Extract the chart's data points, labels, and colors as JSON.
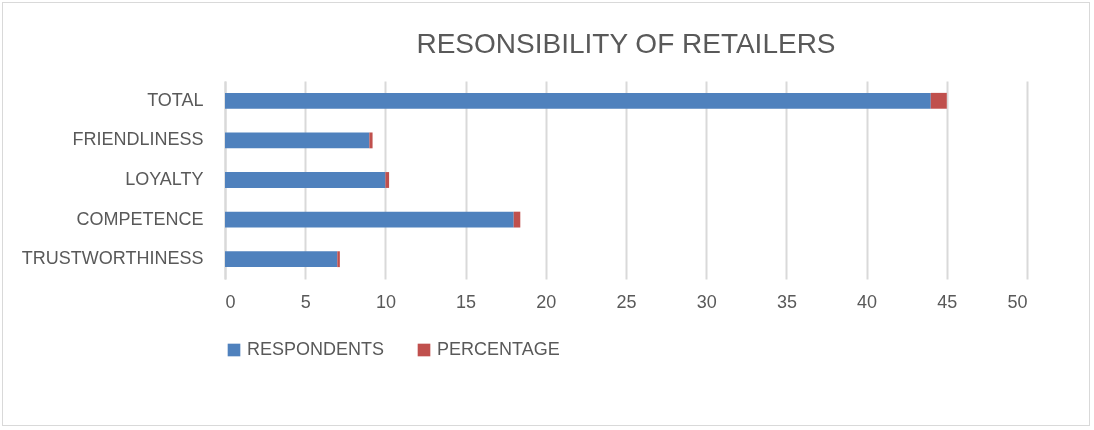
{
  "chart_data": {
    "type": "bar",
    "orientation": "horizontal",
    "stacked": true,
    "title": "RESONSIBILITY OF RETAILERS",
    "categories": [
      "TOTAL",
      "FRIENDLINESS",
      "LOYALTY",
      "COMPETENCE",
      "TRUSTWORTHINESS"
    ],
    "series": [
      {
        "name": "RESPONDENTS",
        "color": "#4f81bd",
        "values": [
          44,
          9,
          10,
          18,
          7
        ]
      },
      {
        "name": "PERCENTAGE",
        "color": "#c0504d",
        "values": [
          1,
          0.2,
          0.23,
          0.41,
          0.16
        ]
      }
    ],
    "xlim": [
      0,
      50
    ],
    "xticks": [
      0,
      5,
      10,
      15,
      20,
      25,
      30,
      35,
      40,
      45,
      50
    ],
    "grid": "x",
    "legend": "bottom"
  }
}
